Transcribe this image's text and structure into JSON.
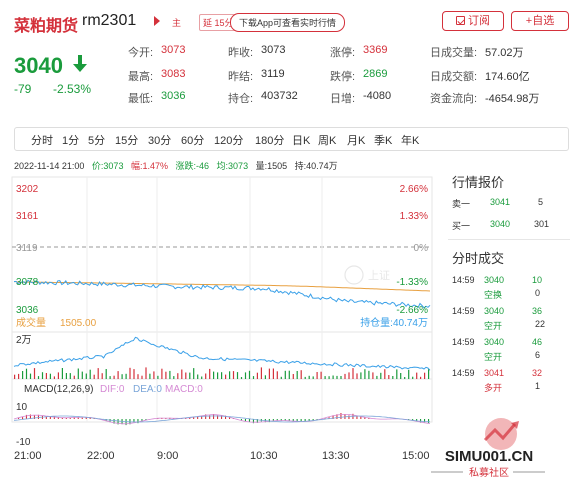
{
  "header": {
    "title": "菜粕期货",
    "code": "rm2301",
    "tag_main": "主",
    "tag_delay": "延 15分",
    "app_button": "下载App可查看实时行情",
    "subscribe_label": "订阅",
    "favorite_label": "+自选"
  },
  "quote": {
    "price": "3040",
    "change": "-79",
    "change_pct": "-2.53%",
    "fields": [
      {
        "label": "今开:",
        "value": "3073",
        "color": "red"
      },
      {
        "label": "昨收:",
        "value": "3073",
        "color": "normal"
      },
      {
        "label": "涨停:",
        "value": "3369",
        "color": "red"
      },
      {
        "label": "日成交量:",
        "value": "57.02万",
        "color": "normal"
      },
      {
        "label": "最高:",
        "value": "3083",
        "color": "red"
      },
      {
        "label": "昨结:",
        "value": "3119",
        "color": "normal"
      },
      {
        "label": "跌停:",
        "value": "2869",
        "color": "green"
      },
      {
        "label": "日成交额:",
        "value": "174.60亿",
        "color": "normal"
      },
      {
        "label": "最低:",
        "value": "3036",
        "color": "green"
      },
      {
        "label": "持仓:",
        "value": "403732",
        "color": "normal"
      },
      {
        "label": "日增:",
        "value": "-4080",
        "color": "normal"
      },
      {
        "label": "资金流向:",
        "value": "-4654.98万",
        "color": "normal"
      }
    ]
  },
  "tabs": [
    "分时",
    "1分",
    "5分",
    "15分",
    "30分",
    "60分",
    "120分",
    "180分",
    "日K",
    "周K",
    "月K",
    "季K",
    "年K"
  ],
  "info_line": {
    "datetime": "2022-11-14 21:00",
    "price": "价:3073",
    "amplitude": "幅:1.47%",
    "change": "涨跌:-46",
    "average": "均:3073",
    "volume": "量:1505",
    "open_interest": "持:40.74万"
  },
  "chart": {
    "y_left": [
      "3202",
      "3161",
      "3119",
      "3078",
      "3036"
    ],
    "y_right": [
      "2.66%",
      "1.33%",
      "0%",
      "-1.33%",
      "-2.66%"
    ],
    "volume_label": "成交量",
    "volume_value": "1505.00",
    "oi_label": "持仓量:40.74万",
    "vol_axis": "2万",
    "macd_label": "MACD(12,26,9)",
    "dif_label": "DIF:0",
    "dea_label": "DEA:0",
    "macd_value_label": "MACD:0",
    "macd_axis_top": "10",
    "macd_axis_bottom": "-10",
    "x_ticks": [
      "21:00",
      "22:00",
      "9:00",
      "10:30",
      "13:30",
      "15:00"
    ],
    "watermark_logo": "上证"
  },
  "chart_data": {
    "type": "line",
    "x": [
      "21:00",
      "22:00",
      "9:00",
      "10:30",
      "13:30",
      "15:00"
    ],
    "series": [
      {
        "name": "价",
        "values": [
          3073,
          3070,
          3066,
          3064,
          3046,
          3040
        ]
      }
    ],
    "ylim": [
      3036,
      3202
    ]
  },
  "side": {
    "quote_title": "行情报价",
    "sell_label": "卖一",
    "sell_price": "3041",
    "sell_vol": "5",
    "buy_label": "买一",
    "buy_price": "3040",
    "buy_vol": "301",
    "trades_title": "分时成交",
    "trades": [
      {
        "time": "14:59",
        "price": "3040",
        "vol": "10",
        "type": "空换",
        "oi": "0",
        "type_color": "green",
        "vol_color": "green"
      },
      {
        "time": "14:59",
        "price": "3040",
        "vol": "36",
        "type": "空开",
        "oi": "22",
        "type_color": "green",
        "vol_color": "green"
      },
      {
        "time": "14:59",
        "price": "3040",
        "vol": "46",
        "type": "空开",
        "oi": "6",
        "type_color": "green",
        "vol_color": "green"
      },
      {
        "time": "14:59",
        "price": "3041",
        "vol": "32",
        "type": "多开",
        "oi": "1",
        "type_color": "red",
        "vol_color": "red"
      }
    ]
  },
  "watermark": {
    "site": "SIMU001.CN",
    "community": "私募社区"
  },
  "colors": {
    "red": "#d4313b",
    "green": "#1a9b3c",
    "price_line": "#3aa0e8",
    "avg_line": "#e8a040"
  }
}
